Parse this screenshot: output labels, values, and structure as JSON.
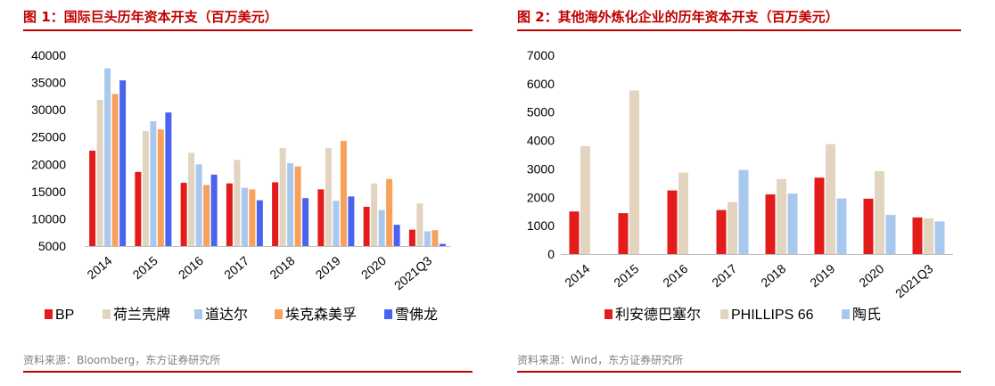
{
  "colors": {
    "title_red": "#c00000",
    "source_gray": "#808080",
    "red": "#e31b1b",
    "beige": "#e2d4bf",
    "light_blue": "#a9c8ee",
    "orange": "#f7a15a",
    "blue": "#4a64f0"
  },
  "panels": [
    {
      "title": "图 1：国际巨头历年资本开支（百万美元）",
      "source": "资料来源：Bloomberg，东方证券研究所"
    },
    {
      "title": "图 2：其他海外炼化企业的历年资本开支（百万美元）",
      "source": "资料来源：Wind，东方证券研究所"
    }
  ],
  "chart_data": [
    {
      "type": "bar",
      "categories": [
        "2014",
        "2015",
        "2016",
        "2017",
        "2018",
        "2019",
        "2020",
        "2021Q3"
      ],
      "series": [
        {
          "name": "BP",
          "color": "#e31b1b",
          "values": [
            22500,
            18600,
            16600,
            16500,
            16700,
            15400,
            12200,
            8000
          ]
        },
        {
          "name": "荷兰壳牌",
          "color": "#e2d4bf",
          "values": [
            31800,
            26100,
            22100,
            20800,
            23000,
            23000,
            16500,
            12800
          ]
        },
        {
          "name": "道达尔",
          "color": "#a9c8ee",
          "values": [
            37600,
            27900,
            20000,
            15700,
            20200,
            13300,
            11600,
            7700
          ]
        },
        {
          "name": "埃克森美孚",
          "color": "#f7a15a",
          "values": [
            32900,
            26400,
            16200,
            15400,
            19600,
            24300,
            17300,
            7900
          ]
        },
        {
          "name": "雪佛龙",
          "color": "#4a64f0",
          "values": [
            35400,
            29500,
            18100,
            13400,
            13800,
            14100,
            8900,
            5400
          ]
        }
      ],
      "ylim": [
        5000,
        40000
      ],
      "yticks": [
        "40000",
        "35000",
        "30000",
        "25000",
        "20000",
        "15000",
        "10000",
        "5000"
      ],
      "legend_position": "bottom",
      "grid": false
    },
    {
      "type": "bar",
      "categories": [
        "2014",
        "2015",
        "2016",
        "2017",
        "2018",
        "2019",
        "2020",
        "2021Q3"
      ],
      "series": [
        {
          "name": "利安德巴塞尔",
          "color": "#e31b1b",
          "values": [
            1500,
            1440,
            2240,
            1550,
            2100,
            2690,
            1950,
            1290
          ]
        },
        {
          "name": "PHILLIPS 66",
          "color": "#e2d4bf",
          "values": [
            3800,
            5760,
            2870,
            1830,
            2640,
            3870,
            2920,
            1260
          ]
        },
        {
          "name": "陶氏",
          "color": "#a9c8ee",
          "values": [
            null,
            null,
            null,
            2960,
            2130,
            1960,
            1380,
            1150
          ]
        }
      ],
      "ylim": [
        0,
        7000
      ],
      "yticks": [
        "7000",
        "6000",
        "5000",
        "4000",
        "3000",
        "2000",
        "1000",
        "0"
      ],
      "legend_position": "bottom",
      "grid": false
    }
  ]
}
